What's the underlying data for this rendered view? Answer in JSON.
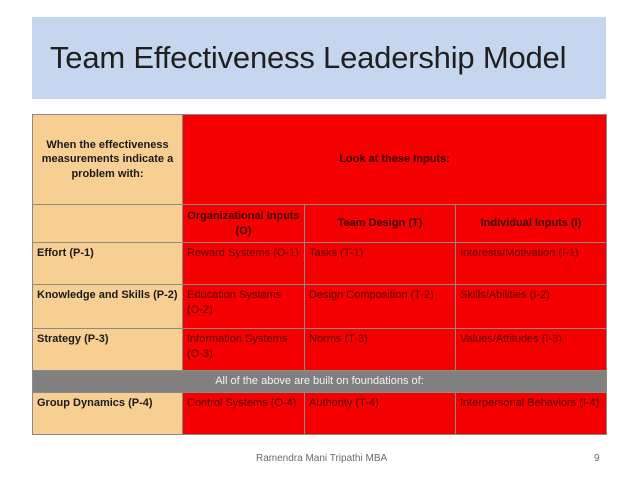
{
  "slide": {
    "title": "Team Effectiveness Leadership Model",
    "footer_text": "Ramendra Mani Tripathi MBA",
    "page_number": "9"
  },
  "table": {
    "corner_text": "When the effectiveness measurements indicate a problem with:",
    "inputs_heading": "Look at these Inputs:",
    "column_headers": [
      "Organizational Inputs (O)",
      "Team Design (T)",
      "Individual Inputs (I)"
    ],
    "rows": [
      {
        "label": "Effort (P-1)",
        "cells": [
          "Reward Systems (O-1)",
          "Tasks (T-1)",
          "Interests/Motivation (I-1)"
        ]
      },
      {
        "label": "Knowledge and Skills (P-2)",
        "cells": [
          "Education Systems (O-2)",
          "Design Composition (T-2)",
          "Skills/Abilities (I-2)"
        ]
      },
      {
        "label": "Strategy (P-3)",
        "cells": [
          "Information Systems (O-3)",
          "Norms (T-3)",
          "Values/Attitudes (I-3)"
        ]
      }
    ],
    "foundation_text": "All of the above are built on foundations of:",
    "foundation_row": {
      "label": "Group Dynamics (P-4)",
      "cells": [
        "Control Systems (O-4)",
        "Authority (T-4)",
        "Interpersonal Behaviors (I-4)"
      ]
    }
  },
  "colors": {
    "title_band": "#c5d6ee",
    "header_tan": "#f7cf93",
    "cell_red": "#f50000",
    "foundation_gray": "#808080"
  }
}
